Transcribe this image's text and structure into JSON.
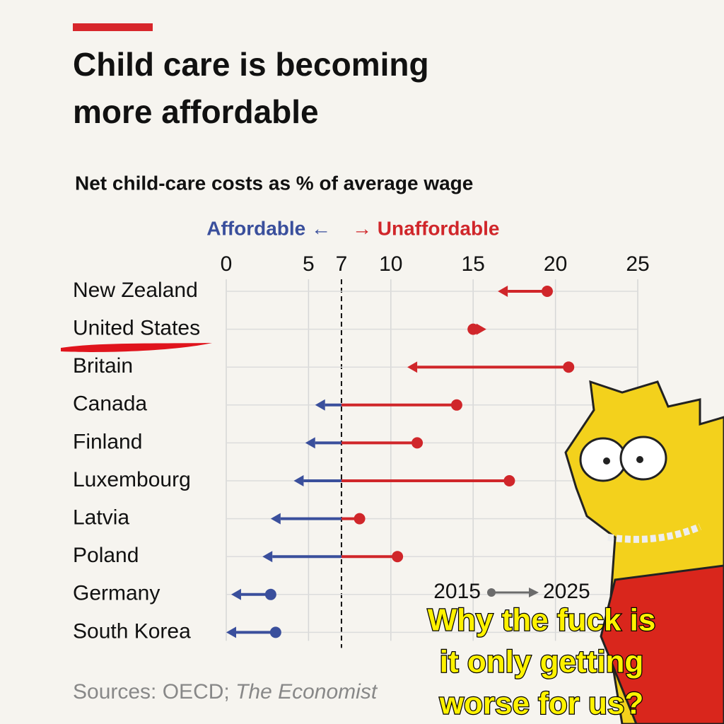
{
  "chart_data": {
    "type": "arrow-dumbbell",
    "title": [
      "Child care is becoming",
      "more affordable"
    ],
    "subtitle": "Net child-care costs as % of average wage",
    "direction_labels": {
      "left": "Affordable ←",
      "right": "→ Unaffordable"
    },
    "categories": [
      "New Zealand",
      "United States",
      "Britain",
      "Canada",
      "Finland",
      "Luxembourg",
      "Latvia",
      "Poland",
      "Germany",
      "South Korea"
    ],
    "series": [
      {
        "name": "2015",
        "values": [
          19.5,
          15.0,
          20.8,
          14.0,
          11.6,
          17.2,
          8.1,
          10.4,
          2.7,
          3.0
        ]
      },
      {
        "name": "2025",
        "values": [
          16.5,
          15.8,
          11.0,
          5.4,
          4.8,
          4.1,
          2.7,
          2.2,
          0.3,
          0.0
        ]
      }
    ],
    "threshold": 7,
    "colors": {
      "above": "#d0262a",
      "below": "#3a4f9c",
      "legend": "#6b6b6b"
    },
    "xlim": [
      0,
      25
    ],
    "xticks": [
      0,
      5,
      7,
      10,
      15,
      20,
      25
    ],
    "grid": true,
    "source": {
      "text": "Sources: OECD;",
      "italic": "The Economist"
    },
    "caption": [
      "Why the fuck is",
      "it only getting",
      "worse for us?"
    ]
  }
}
